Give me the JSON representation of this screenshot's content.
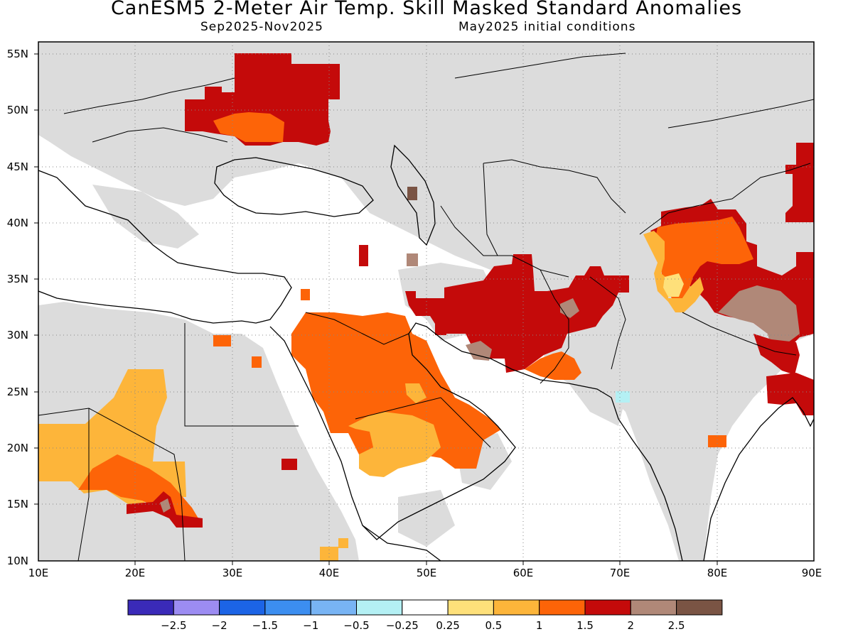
{
  "header": {
    "title": "CanESM5 2-Meter Air Temp. Skill Masked Standard Anomalies",
    "subtitle_left": "Sep2025-Nov2025",
    "subtitle_right": "May2025 initial conditions"
  },
  "map": {
    "lon_range": [
      10,
      90
    ],
    "lat_range": [
      10,
      56
    ],
    "lat_ticks": [
      "55N",
      "50N",
      "45N",
      "40N",
      "35N",
      "30N",
      "25N",
      "20N",
      "15N",
      "10N"
    ],
    "lon_ticks": [
      "10E",
      "20E",
      "30E",
      "40E",
      "50E",
      "60E",
      "70E",
      "80E",
      "90E"
    ],
    "grid": "dotted",
    "masked_color": "#dcdcdc",
    "anomaly_regions": [
      {
        "region": "Ukraine / southern Russia",
        "category": "2"
      },
      {
        "region": "Saudi Arabia",
        "category": "1"
      },
      {
        "region": "Arabian Peninsula south",
        "category": "0.5"
      },
      {
        "region": "Iran / Afghanistan",
        "category": "2"
      },
      {
        "region": "Pakistan",
        "category": "2"
      },
      {
        "region": "Tibet / western China",
        "category": "2.5"
      },
      {
        "region": "Chad / Sudan",
        "category": "0.5"
      }
    ]
  },
  "colorbar": {
    "colors": [
      "#3a2ab8",
      "#9c8cf2",
      "#1c64e6",
      "#3c8ef0",
      "#78b4f4",
      "#b4f0f4",
      "#ffffff",
      "#fee07a",
      "#fdb53a",
      "#fd6408",
      "#c40a0a",
      "#b08878",
      "#7a5444"
    ],
    "labels": [
      "-2.5",
      "-2",
      "-1.5",
      "-1",
      "-0.5",
      "-0.25",
      "0.25",
      "0.5",
      "1",
      "1.5",
      "2",
      "2.5"
    ]
  }
}
